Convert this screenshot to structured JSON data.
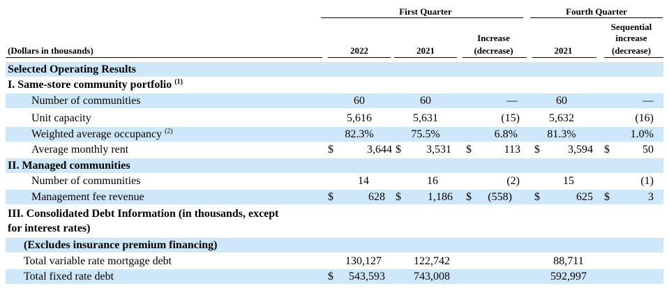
{
  "header": {
    "group_first_quarter": "First Quarter",
    "group_fourth_quarter": "Fourth Quarter",
    "dollars_label": "(Dollars in thousands)",
    "col_2022": "2022",
    "col_2021": "2021",
    "col_increase_line1": "Increase",
    "col_increase_line2": "(decrease)",
    "col_q4_2021": "2021",
    "col_seq_line1": "Sequential",
    "col_seq_line2": "increase",
    "col_seq_line3": "(decrease)"
  },
  "sections": {
    "selected": "Selected Operating Results",
    "same_store": "I. Same-store community portfolio",
    "same_store_note": "(1)",
    "managed": "II. Managed communities",
    "debt_line1": "III. Consolidated Debt Information (in thousands, except",
    "debt_line2": "for interest rates)",
    "excludes": "(Excludes insurance premium financing)"
  },
  "rows": {
    "num_communities": {
      "label": "Number of communities",
      "c2022": "60",
      "c2021": "60",
      "inc": "—",
      "q4": "60",
      "seq": "—"
    },
    "unit_capacity": {
      "label": "Unit capacity",
      "c2022": "5,616",
      "c2021": "5,631",
      "inc": "(15)",
      "q4": "5,632",
      "seq": "(16)"
    },
    "occupancy": {
      "label": "Weighted average occupancy",
      "note": "(2)",
      "c2022": "82.3%",
      "c2021": "75.5%",
      "inc": "6.8%",
      "q4": "81.3%",
      "seq": "1.0%"
    },
    "monthly_rent": {
      "label": "Average monthly rent",
      "cur": "$",
      "c2022": "3,644",
      "c2021": "3,531",
      "inc": "113",
      "q4": "3,594",
      "seq": "50"
    },
    "managed_count": {
      "label": "Number of communities",
      "c2022": "14",
      "c2021": "16",
      "inc": "(2)",
      "q4": "15",
      "seq": "(1)"
    },
    "mgmt_fee": {
      "label": "Management fee revenue",
      "cur": "$",
      "c2022": "628",
      "c2021": "1,186",
      "inc": "(558)",
      "q4": "625",
      "seq": "3"
    },
    "variable_debt": {
      "label": "Total variable rate mortgage debt",
      "c2022": "130,127",
      "c2021": "122,742",
      "q4": "88,711"
    },
    "fixed_debt": {
      "label": "Total fixed rate debt",
      "cur": "$",
      "c2022": "543,593",
      "c2021": "743,008",
      "q4": "592,997"
    }
  }
}
